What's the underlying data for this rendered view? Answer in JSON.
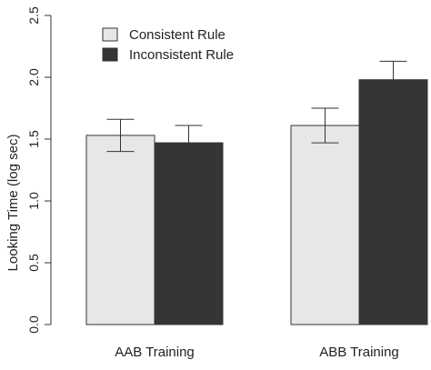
{
  "chart_data": {
    "type": "bar",
    "categories": [
      "AAB Training",
      "ABB Training"
    ],
    "series": [
      {
        "name": "Consistent Rule",
        "color": "#e6e8e8",
        "values": [
          1.53,
          1.61
        ],
        "error": [
          0.13,
          0.14
        ]
      },
      {
        "name": "Inconsistent Rule",
        "color": "#353535",
        "values": [
          1.47,
          1.98
        ],
        "error": [
          0.14,
          0.15
        ]
      }
    ],
    "ylabel": "Looking Time (log sec)",
    "ylim": [
      0,
      2.5
    ],
    "yticks": [
      0.0,
      0.5,
      1.0,
      1.5,
      2.0,
      2.5
    ],
    "ytick_labels": [
      "0.0",
      "0.5",
      "1.0",
      "1.5",
      "2.0",
      "2.5"
    ],
    "legend_placement": "top-left",
    "grid": false
  }
}
